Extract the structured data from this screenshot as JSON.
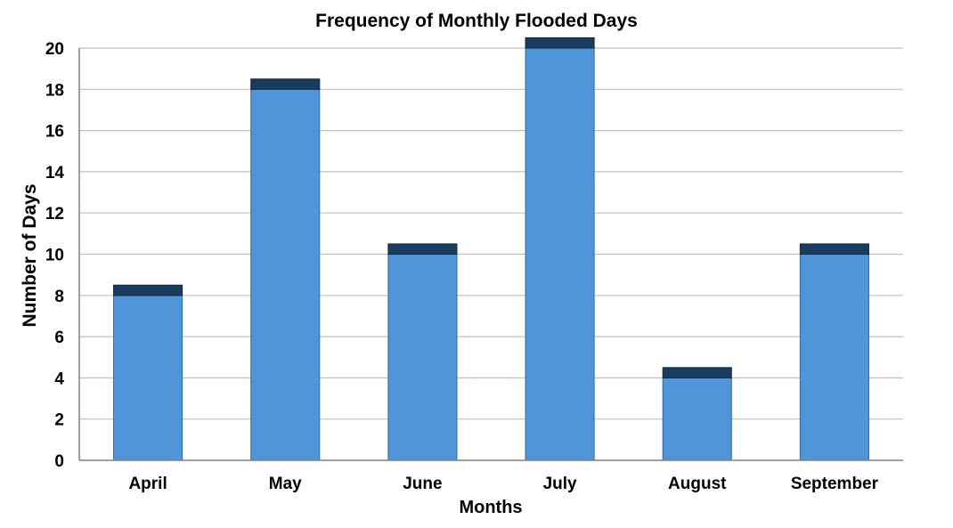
{
  "chart_data": {
    "type": "bar",
    "title": "Frequency of Monthly Flooded Days",
    "xlabel": "Months",
    "ylabel": "Number of Days",
    "categories": [
      "April",
      "May",
      "June",
      "July",
      "August",
      "September"
    ],
    "series": [
      {
        "values": [
          8,
          18,
          10,
          20,
          4,
          10
        ]
      },
      {
        "values": [
          0.5,
          0.5,
          0.5,
          0.5,
          0.5,
          0.5
        ]
      }
    ],
    "stacked": true,
    "ylim": [
      0,
      20
    ],
    "yticks": [
      "0",
      "2",
      "4",
      "6",
      "8",
      "10",
      "12",
      "14",
      "16",
      "18",
      "20"
    ],
    "grid": true,
    "legend": "none",
    "colors": {
      "bar_fill": "#5095d9",
      "bar_edge": "#2d6aa3",
      "cap_fill": "#1a3c5e",
      "cap_edge": "#0f2740",
      "grid": "#bfbfbf",
      "axis": "#808080"
    }
  }
}
